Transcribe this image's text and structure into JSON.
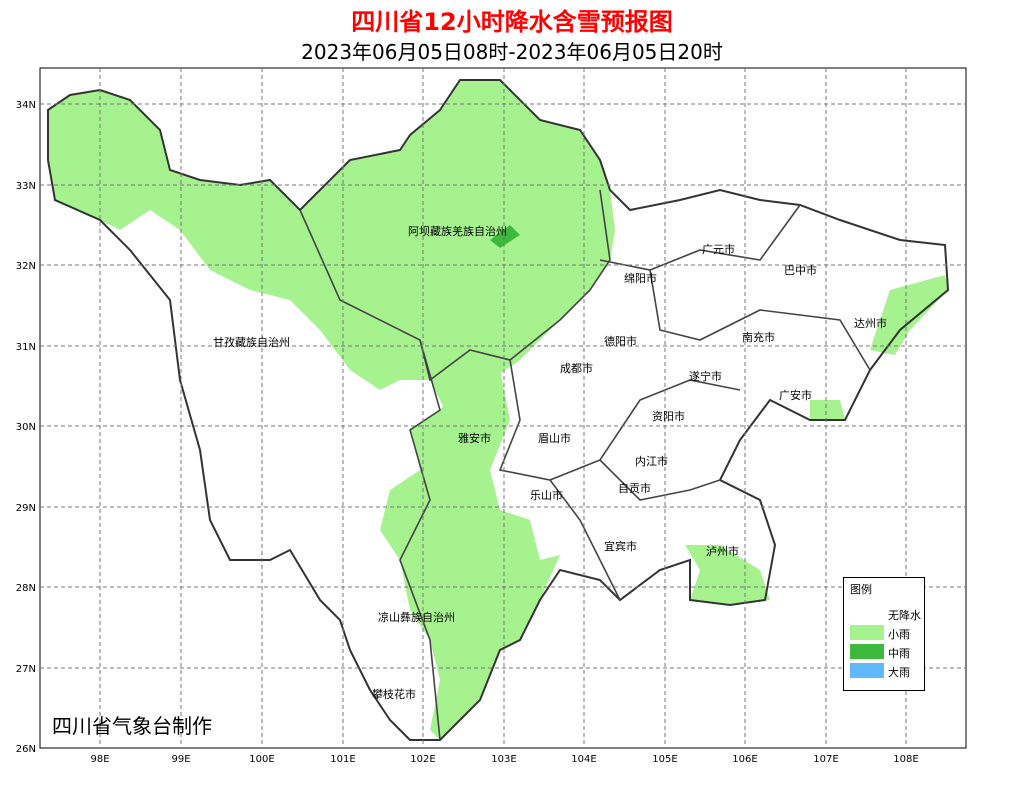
{
  "title": "四川省12小时降水含雪预报图",
  "subtitle": "2023年06月05日08时-2023年06月05日20时",
  "credit": "四川省气象台制作",
  "axes": {
    "lon_ticks": [
      "98E",
      "99E",
      "100E",
      "101E",
      "102E",
      "103E",
      "104E",
      "105E",
      "106E",
      "107E",
      "108E"
    ],
    "lat_ticks": [
      "34N",
      "33N",
      "32N",
      "31N",
      "30N",
      "29N",
      "28N",
      "27N",
      "26N"
    ]
  },
  "regions": [
    "阿坝藏族羌族自治州",
    "甘孜藏族自治州",
    "广元市",
    "巴中市",
    "绵阳市",
    "达州市",
    "南充市",
    "德阳市",
    "成都市",
    "遂宁市",
    "广安市",
    "资阳市",
    "雅安市",
    "眉山市",
    "内江市",
    "自贡市",
    "乐山市",
    "宜宾市",
    "泸州市",
    "凉山彝族自治州",
    "攀枝花市"
  ],
  "legend": {
    "title": "图例",
    "items": [
      {
        "label": "无降水",
        "color": "#ffffff"
      },
      {
        "label": "小雨",
        "color": "#a6f28f"
      },
      {
        "label": "中雨",
        "color": "#3dba3d"
      },
      {
        "label": "大雨",
        "color": "#61b8ff"
      }
    ]
  }
}
